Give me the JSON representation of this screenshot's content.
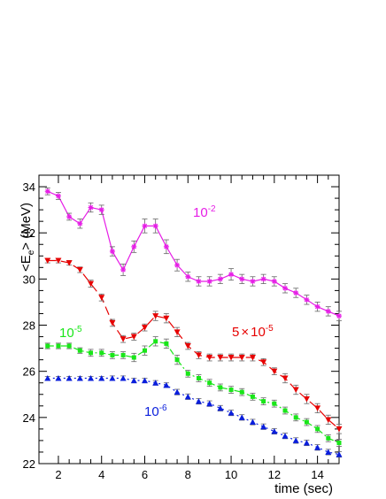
{
  "chart_data": {
    "type": "line",
    "xlabel": "time (sec)",
    "ylabel_main": "<E",
    "ylabel_sub": "e",
    "ylabel_tail": "> (MeV)",
    "xlim": [
      1.1,
      15.0
    ],
    "ylim": [
      22,
      34.5
    ],
    "xticks": [
      2,
      4,
      6,
      8,
      10,
      12,
      14
    ],
    "yticks": [
      22,
      24,
      26,
      28,
      30,
      32,
      34
    ],
    "grid": false,
    "series": [
      {
        "label_base": "10",
        "label_exp": "-2",
        "color": "#e61ee6",
        "marker": "star",
        "dash": "solid",
        "x": [
          1.5,
          2.0,
          2.5,
          3.0,
          3.5,
          4.0,
          4.5,
          5.0,
          5.5,
          6.0,
          6.5,
          7.0,
          7.5,
          8.0,
          8.5,
          9.0,
          9.5,
          10.0,
          10.5,
          11.0,
          11.5,
          12.0,
          12.5,
          13.0,
          13.5,
          14.0,
          14.5,
          15.0
        ],
        "y": [
          33.8,
          33.6,
          32.7,
          32.4,
          33.1,
          33.0,
          31.2,
          30.4,
          31.4,
          32.3,
          32.3,
          31.4,
          30.6,
          30.1,
          29.9,
          29.9,
          30.0,
          30.2,
          30.0,
          29.9,
          30.0,
          29.9,
          29.6,
          29.4,
          29.1,
          28.8,
          28.6,
          28.4
        ],
        "err": [
          0.15,
          0.15,
          0.15,
          0.2,
          0.2,
          0.2,
          0.2,
          0.25,
          0.25,
          0.3,
          0.3,
          0.3,
          0.25,
          0.2,
          0.2,
          0.2,
          0.2,
          0.25,
          0.2,
          0.2,
          0.2,
          0.2,
          0.2,
          0.2,
          0.2,
          0.2,
          0.2,
          0.2
        ]
      },
      {
        "label_base": "5",
        "label_exp": "-5",
        "color": "#e60000",
        "marker": "triangle-down",
        "dash": "10,5",
        "x": [
          1.5,
          2.0,
          2.5,
          3.0,
          3.5,
          4.0,
          4.5,
          5.0,
          5.5,
          6.0,
          6.5,
          7.0,
          7.5,
          8.0,
          8.5,
          9.0,
          9.5,
          10.0,
          10.5,
          11.0,
          11.5,
          12.0,
          12.5,
          13.0,
          13.5,
          14.0,
          14.5,
          15.0
        ],
        "y": [
          30.8,
          30.8,
          30.7,
          30.4,
          29.8,
          29.2,
          28.1,
          27.4,
          27.5,
          27.9,
          28.4,
          28.3,
          27.7,
          27.1,
          26.7,
          26.6,
          26.6,
          26.6,
          26.6,
          26.6,
          26.4,
          26.0,
          25.7,
          25.2,
          24.8,
          24.4,
          23.9,
          23.5
        ],
        "err": [
          0.1,
          0.1,
          0.1,
          0.12,
          0.15,
          0.15,
          0.15,
          0.15,
          0.15,
          0.15,
          0.2,
          0.2,
          0.2,
          0.15,
          0.15,
          0.15,
          0.15,
          0.15,
          0.15,
          0.15,
          0.15,
          0.15,
          0.2,
          0.2,
          0.2,
          0.2,
          0.2,
          0.2
        ]
      },
      {
        "label_base": "10",
        "label_exp": "-5",
        "color": "#19e619",
        "marker": "square",
        "dash": "7,3,2,3",
        "x": [
          1.5,
          2.0,
          2.5,
          3.0,
          3.5,
          4.0,
          4.5,
          5.0,
          5.5,
          6.0,
          6.5,
          7.0,
          7.5,
          8.0,
          8.5,
          9.0,
          9.5,
          10.0,
          10.5,
          11.0,
          11.5,
          12.0,
          12.5,
          13.0,
          13.5,
          14.0,
          14.5,
          15.0
        ],
        "y": [
          27.1,
          27.1,
          27.1,
          26.9,
          26.8,
          26.8,
          26.7,
          26.7,
          26.6,
          26.9,
          27.3,
          27.2,
          26.5,
          25.9,
          25.7,
          25.5,
          25.3,
          25.2,
          25.1,
          24.9,
          24.7,
          24.6,
          24.3,
          24.0,
          23.8,
          23.5,
          23.1,
          22.9
        ],
        "err": [
          0.12,
          0.12,
          0.12,
          0.12,
          0.15,
          0.15,
          0.15,
          0.15,
          0.18,
          0.2,
          0.2,
          0.2,
          0.2,
          0.15,
          0.15,
          0.15,
          0.15,
          0.15,
          0.15,
          0.15,
          0.15,
          0.15,
          0.15,
          0.15,
          0.15,
          0.15,
          0.15,
          0.15
        ]
      },
      {
        "label_base": "10",
        "label_exp": "-6",
        "color": "#0a1edc",
        "marker": "triangle-up",
        "dash": "2,4",
        "x": [
          1.5,
          2.0,
          2.5,
          3.0,
          3.5,
          4.0,
          4.5,
          5.0,
          5.5,
          6.0,
          6.5,
          7.0,
          7.5,
          8.0,
          8.5,
          9.0,
          9.5,
          10.0,
          10.5,
          11.0,
          11.5,
          12.0,
          12.5,
          13.0,
          13.5,
          14.0,
          14.5,
          15.0
        ],
        "y": [
          25.7,
          25.7,
          25.7,
          25.7,
          25.7,
          25.7,
          25.7,
          25.7,
          25.6,
          25.6,
          25.5,
          25.4,
          25.1,
          24.9,
          24.7,
          24.6,
          24.4,
          24.2,
          24.0,
          23.8,
          23.6,
          23.4,
          23.2,
          23.0,
          22.9,
          22.7,
          22.5,
          22.4
        ],
        "err": [
          0.08,
          0.08,
          0.08,
          0.08,
          0.08,
          0.08,
          0.1,
          0.1,
          0.1,
          0.1,
          0.1,
          0.1,
          0.12,
          0.12,
          0.12,
          0.12,
          0.12,
          0.12,
          0.12,
          0.12,
          0.12,
          0.12,
          0.12,
          0.12,
          0.12,
          0.12,
          0.12,
          0.12
        ]
      }
    ]
  }
}
